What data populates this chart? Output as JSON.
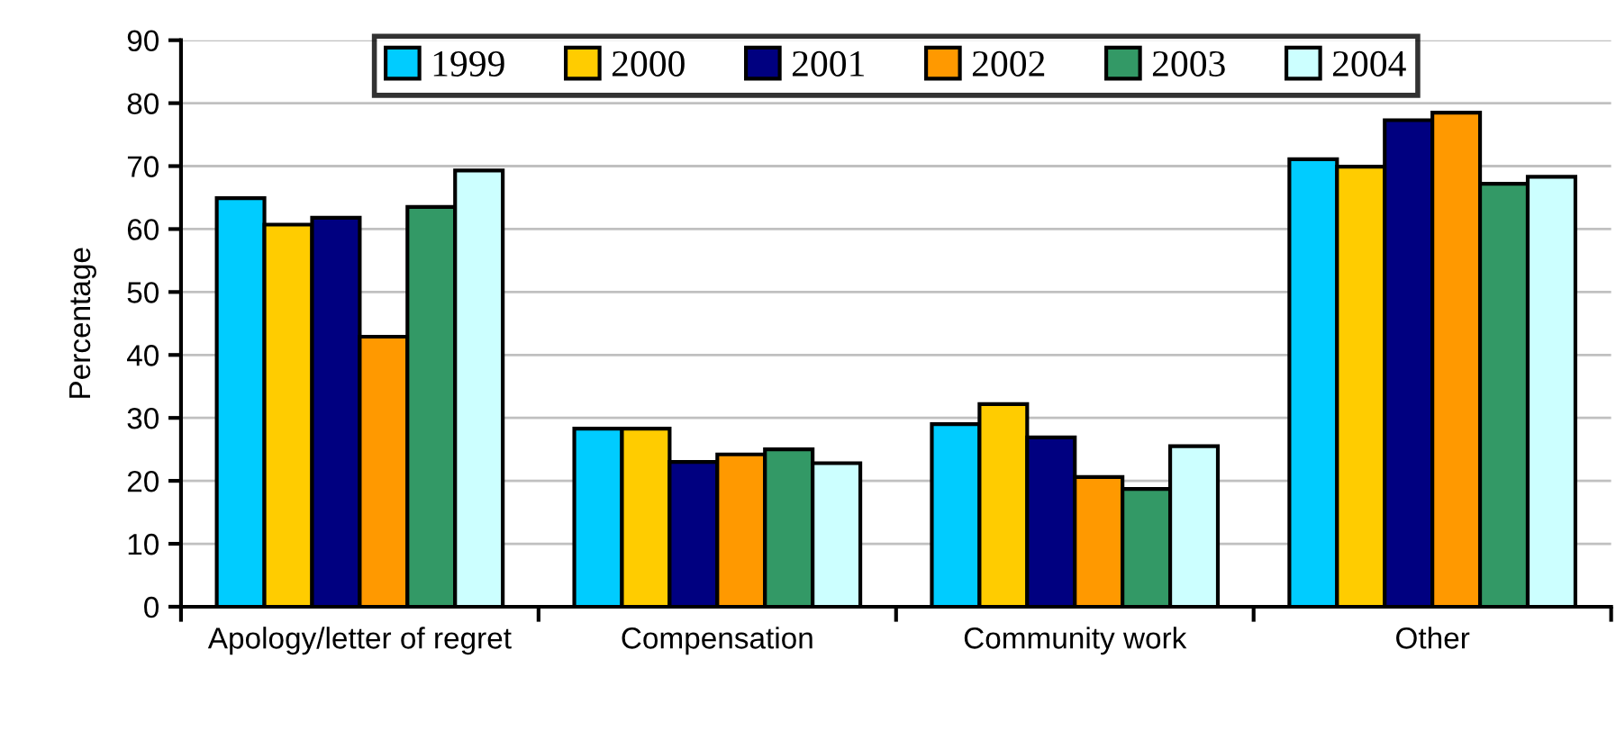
{
  "chart_data": {
    "type": "bar",
    "ylabel": "Percentage",
    "categories": [
      "Apology/letter of regret",
      "Compensation",
      "Community work",
      "Other"
    ],
    "series": [
      {
        "name": "1999",
        "color": "#00ccff",
        "values": [
          64.9,
          28.3,
          29.0,
          71.1
        ]
      },
      {
        "name": "2000",
        "color": "#ffcc00",
        "values": [
          60.7,
          28.3,
          32.2,
          69.9
        ]
      },
      {
        "name": "2001",
        "color": "#000080",
        "values": [
          61.8,
          23.0,
          26.9,
          77.3
        ]
      },
      {
        "name": "2002",
        "color": "#ff9900",
        "values": [
          42.9,
          24.2,
          20.6,
          78.5
        ]
      },
      {
        "name": "2003",
        "color": "#339966",
        "values": [
          63.5,
          25.0,
          18.7,
          67.2
        ]
      },
      {
        "name": "2004",
        "color": "#ccffff",
        "values": [
          69.3,
          22.8,
          25.5,
          68.3
        ]
      }
    ],
    "ylim": [
      0,
      90
    ],
    "yticks": [
      0,
      10,
      20,
      30,
      40,
      50,
      60,
      70,
      80,
      90
    ],
    "grid": "y",
    "legend": "top"
  }
}
